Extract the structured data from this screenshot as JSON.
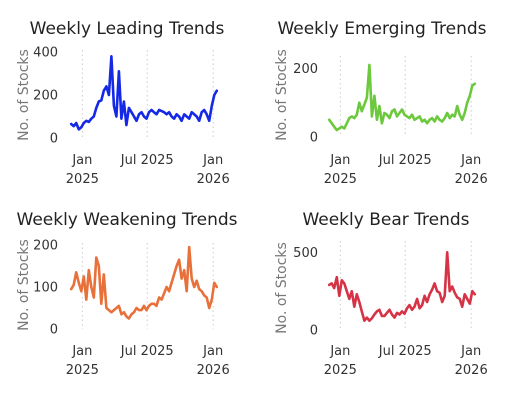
{
  "chart_data": [
    {
      "type": "line",
      "title": "Weekly Leading Trends",
      "ylabel": "No. of Stocks",
      "color": "#1428e6",
      "ylim": [
        0,
        400
      ],
      "yticks": [
        0,
        200,
        400
      ],
      "xlim": [
        "2024-11-22",
        "2026-01-20"
      ],
      "xticks": [
        {
          "date": "2025-01-01",
          "label": [
            "Jan",
            "2025"
          ]
        },
        {
          "date": "2025-07-01",
          "label": [
            "Jul 2025"
          ]
        },
        {
          "date": "2026-01-01",
          "label": [
            "Jan",
            "2026"
          ]
        }
      ],
      "grid": "x-dotted",
      "x": [
        "2024-12-01",
        "2024-12-08",
        "2024-12-15",
        "2024-12-22",
        "2024-12-29",
        "2025-01-05",
        "2025-01-12",
        "2025-01-19",
        "2025-01-26",
        "2025-02-02",
        "2025-02-09",
        "2025-02-16",
        "2025-02-23",
        "2025-03-02",
        "2025-03-09",
        "2025-03-16",
        "2025-03-23",
        "2025-03-30",
        "2025-04-06",
        "2025-04-13",
        "2025-04-20",
        "2025-04-27",
        "2025-05-04",
        "2025-05-11",
        "2025-05-18",
        "2025-05-25",
        "2025-06-01",
        "2025-06-08",
        "2025-06-15",
        "2025-06-22",
        "2025-06-29",
        "2025-07-06",
        "2025-07-13",
        "2025-07-20",
        "2025-07-27",
        "2025-08-03",
        "2025-08-10",
        "2025-08-17",
        "2025-08-24",
        "2025-08-31",
        "2025-09-07",
        "2025-09-14",
        "2025-09-21",
        "2025-09-28",
        "2025-10-05",
        "2025-10-12",
        "2025-10-19",
        "2025-10-26",
        "2025-11-02",
        "2025-11-09",
        "2025-11-16",
        "2025-11-23",
        "2025-11-30",
        "2025-12-07",
        "2025-12-14",
        "2025-12-21",
        "2025-12-28",
        "2026-01-04",
        "2026-01-11"
      ],
      "values": [
        65,
        55,
        70,
        40,
        50,
        70,
        80,
        75,
        90,
        100,
        140,
        170,
        175,
        220,
        240,
        200,
        380,
        150,
        100,
        310,
        90,
        170,
        60,
        140,
        120,
        100,
        80,
        110,
        120,
        100,
        90,
        120,
        130,
        120,
        110,
        130,
        125,
        120,
        110,
        120,
        100,
        90,
        110,
        100,
        80,
        110,
        100,
        90,
        120,
        110,
        100,
        80,
        120,
        130,
        110,
        80,
        150,
        200,
        220
      ]
    },
    {
      "type": "line",
      "title": "Weekly Emerging Trends",
      "ylabel": "No. of Stocks",
      "color": "#6cc83c",
      "ylim": [
        0,
        230
      ],
      "yticks": [
        0,
        200
      ],
      "xlim": [
        "2024-11-22",
        "2026-01-20"
      ],
      "xticks": [
        {
          "date": "2025-01-01",
          "label": [
            "Jan",
            "2025"
          ]
        },
        {
          "date": "2025-07-01",
          "label": [
            "Jul 2025"
          ]
        },
        {
          "date": "2026-01-01",
          "label": [
            "Jan",
            "2026"
          ]
        }
      ],
      "grid": "x-dotted",
      "x": [
        "2024-12-01",
        "2024-12-08",
        "2024-12-15",
        "2024-12-22",
        "2024-12-29",
        "2025-01-05",
        "2025-01-12",
        "2025-01-19",
        "2025-01-26",
        "2025-02-02",
        "2025-02-09",
        "2025-02-16",
        "2025-02-23",
        "2025-03-02",
        "2025-03-09",
        "2025-03-16",
        "2025-03-23",
        "2025-03-30",
        "2025-04-06",
        "2025-04-13",
        "2025-04-20",
        "2025-04-27",
        "2025-05-04",
        "2025-05-11",
        "2025-05-18",
        "2025-05-25",
        "2025-06-01",
        "2025-06-08",
        "2025-06-15",
        "2025-06-22",
        "2025-06-29",
        "2025-07-06",
        "2025-07-13",
        "2025-07-20",
        "2025-07-27",
        "2025-08-03",
        "2025-08-10",
        "2025-08-17",
        "2025-08-24",
        "2025-08-31",
        "2025-09-07",
        "2025-09-14",
        "2025-09-21",
        "2025-09-28",
        "2025-10-05",
        "2025-10-12",
        "2025-10-19",
        "2025-10-26",
        "2025-11-02",
        "2025-11-09",
        "2025-11-16",
        "2025-11-23",
        "2025-11-30",
        "2025-12-07",
        "2025-12-14",
        "2025-12-21",
        "2025-12-28",
        "2026-01-04",
        "2026-01-11"
      ],
      "values": [
        50,
        40,
        30,
        20,
        25,
        30,
        25,
        40,
        55,
        60,
        55,
        65,
        100,
        75,
        95,
        115,
        210,
        60,
        120,
        50,
        90,
        40,
        70,
        65,
        55,
        75,
        80,
        60,
        70,
        80,
        65,
        60,
        55,
        65,
        50,
        55,
        60,
        45,
        50,
        40,
        50,
        55,
        45,
        60,
        50,
        45,
        55,
        70,
        55,
        65,
        60,
        90,
        65,
        50,
        70,
        100,
        120,
        150,
        155
      ]
    },
    {
      "type": "line",
      "title": "Weekly Weakening Trends",
      "ylabel": "No. of Stocks",
      "color": "#e8703a",
      "ylim": [
        0,
        200
      ],
      "yticks": [
        0,
        100,
        200
      ],
      "xlim": [
        "2024-11-22",
        "2026-01-20"
      ],
      "xticks": [
        {
          "date": "2025-01-01",
          "label": [
            "Jan",
            "2025"
          ]
        },
        {
          "date": "2025-07-01",
          "label": [
            "Jul 2025"
          ]
        },
        {
          "date": "2026-01-01",
          "label": [
            "Jan",
            "2026"
          ]
        }
      ],
      "grid": "x-dotted",
      "x": [
        "2024-12-01",
        "2024-12-08",
        "2024-12-15",
        "2024-12-22",
        "2024-12-29",
        "2025-01-05",
        "2025-01-12",
        "2025-01-19",
        "2025-01-26",
        "2025-02-02",
        "2025-02-09",
        "2025-02-16",
        "2025-02-23",
        "2025-03-02",
        "2025-03-09",
        "2025-03-16",
        "2025-03-23",
        "2025-03-30",
        "2025-04-06",
        "2025-04-13",
        "2025-04-20",
        "2025-04-27",
        "2025-05-04",
        "2025-05-11",
        "2025-05-18",
        "2025-05-25",
        "2025-06-01",
        "2025-06-08",
        "2025-06-15",
        "2025-06-22",
        "2025-06-29",
        "2025-07-06",
        "2025-07-13",
        "2025-07-20",
        "2025-07-27",
        "2025-08-03",
        "2025-08-10",
        "2025-08-17",
        "2025-08-24",
        "2025-08-31",
        "2025-09-07",
        "2025-09-14",
        "2025-09-21",
        "2025-09-28",
        "2025-10-05",
        "2025-10-12",
        "2025-10-19",
        "2025-10-26",
        "2025-11-02",
        "2025-11-09",
        "2025-11-16",
        "2025-11-23",
        "2025-11-30",
        "2025-12-07",
        "2025-12-14",
        "2025-12-21",
        "2025-12-28",
        "2026-01-04",
        "2026-01-11"
      ],
      "values": [
        95,
        105,
        135,
        110,
        90,
        125,
        70,
        140,
        100,
        75,
        170,
        150,
        60,
        130,
        50,
        45,
        40,
        45,
        50,
        55,
        35,
        40,
        30,
        25,
        35,
        40,
        50,
        45,
        45,
        55,
        45,
        55,
        60,
        60,
        55,
        75,
        70,
        85,
        100,
        90,
        110,
        130,
        150,
        165,
        120,
        140,
        90,
        195,
        120,
        100,
        115,
        95,
        90,
        80,
        75,
        50,
        70,
        110,
        100
      ]
    },
    {
      "type": "line",
      "title": "Weekly Bear Trends",
      "ylabel": "No. of Stocks",
      "color": "#d63346",
      "ylim": [
        0,
        560
      ],
      "yticks": [
        0,
        500
      ],
      "xlim": [
        "2024-11-22",
        "2026-01-20"
      ],
      "xticks": [
        {
          "date": "2025-01-01",
          "label": [
            "Jan",
            "2025"
          ]
        },
        {
          "date": "2025-07-01",
          "label": [
            "Jul 2025"
          ]
        },
        {
          "date": "2026-01-01",
          "label": [
            "Jan",
            "2026"
          ]
        }
      ],
      "grid": "x-dotted",
      "x": [
        "2024-12-01",
        "2024-12-08",
        "2024-12-15",
        "2024-12-22",
        "2024-12-29",
        "2025-01-05",
        "2025-01-12",
        "2025-01-19",
        "2025-01-26",
        "2025-02-02",
        "2025-02-09",
        "2025-02-16",
        "2025-02-23",
        "2025-03-02",
        "2025-03-09",
        "2025-03-16",
        "2025-03-23",
        "2025-03-30",
        "2025-04-06",
        "2025-04-13",
        "2025-04-20",
        "2025-04-27",
        "2025-05-04",
        "2025-05-11",
        "2025-05-18",
        "2025-05-25",
        "2025-06-01",
        "2025-06-08",
        "2025-06-15",
        "2025-06-22",
        "2025-06-29",
        "2025-07-06",
        "2025-07-13",
        "2025-07-20",
        "2025-07-27",
        "2025-08-03",
        "2025-08-10",
        "2025-08-17",
        "2025-08-24",
        "2025-08-31",
        "2025-09-07",
        "2025-09-14",
        "2025-09-21",
        "2025-09-28",
        "2025-10-05",
        "2025-10-12",
        "2025-10-19",
        "2025-10-26",
        "2025-11-02",
        "2025-11-09",
        "2025-11-16",
        "2025-11-23",
        "2025-11-30",
        "2025-12-07",
        "2025-12-14",
        "2025-12-21",
        "2025-12-28",
        "2026-01-04",
        "2026-01-11"
      ],
      "values": [
        290,
        300,
        270,
        340,
        220,
        320,
        300,
        250,
        200,
        250,
        150,
        230,
        180,
        120,
        60,
        80,
        60,
        75,
        100,
        120,
        130,
        90,
        90,
        110,
        130,
        100,
        80,
        110,
        100,
        120,
        105,
        140,
        160,
        130,
        150,
        200,
        140,
        160,
        220,
        180,
        230,
        260,
        300,
        250,
        240,
        180,
        220,
        500,
        250,
        280,
        240,
        210,
        200,
        150,
        230,
        200,
        170,
        250,
        230
      ]
    }
  ]
}
